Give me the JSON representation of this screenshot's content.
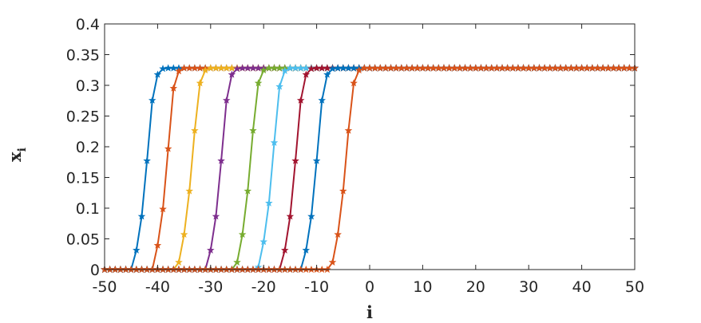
{
  "chart_data": {
    "type": "line",
    "xlabel": "i",
    "ylabel": "x",
    "ylabel_subscript": "i",
    "xlim": [
      -50,
      50
    ],
    "ylim": [
      0,
      0.4
    ],
    "x_ticks": [
      "-50",
      "-40",
      "-30",
      "-20",
      "-10",
      "0",
      "10",
      "20",
      "30",
      "40",
      "50"
    ],
    "y_ticks": [
      "0",
      "0.05",
      "0.1",
      "0.15",
      "0.2",
      "0.25",
      "0.3",
      "0.35",
      "0.4"
    ],
    "grid": false,
    "marker": "pentagram",
    "x_range": [
      -50,
      50
    ],
    "plateau": 0.328,
    "series": [
      {
        "color": "#0072BD",
        "midpoint": -40.8
      },
      {
        "color": "#D95319",
        "midpoint": -37.0
      },
      {
        "color": "#EDB120",
        "midpoint": -32.3
      },
      {
        "color": "#7E2F8E",
        "midpoint": -26.8
      },
      {
        "color": "#77AC30",
        "midpoint": -21.3
      },
      {
        "color": "#4DBEEE",
        "midpoint": -17.1
      },
      {
        "color": "#A2142F",
        "midpoint": -12.8
      },
      {
        "color": "#0072BD",
        "midpoint": -8.8
      },
      {
        "color": "#D95319",
        "midpoint": -3.3
      }
    ],
    "profile_offsets": [
      -4,
      -3,
      -2,
      -1,
      0,
      1,
      2,
      3,
      4
    ],
    "profile_fractions": [
      0.0,
      0.12,
      0.3,
      0.6,
      0.9,
      0.985,
      1.0,
      1.0,
      1.0
    ]
  }
}
